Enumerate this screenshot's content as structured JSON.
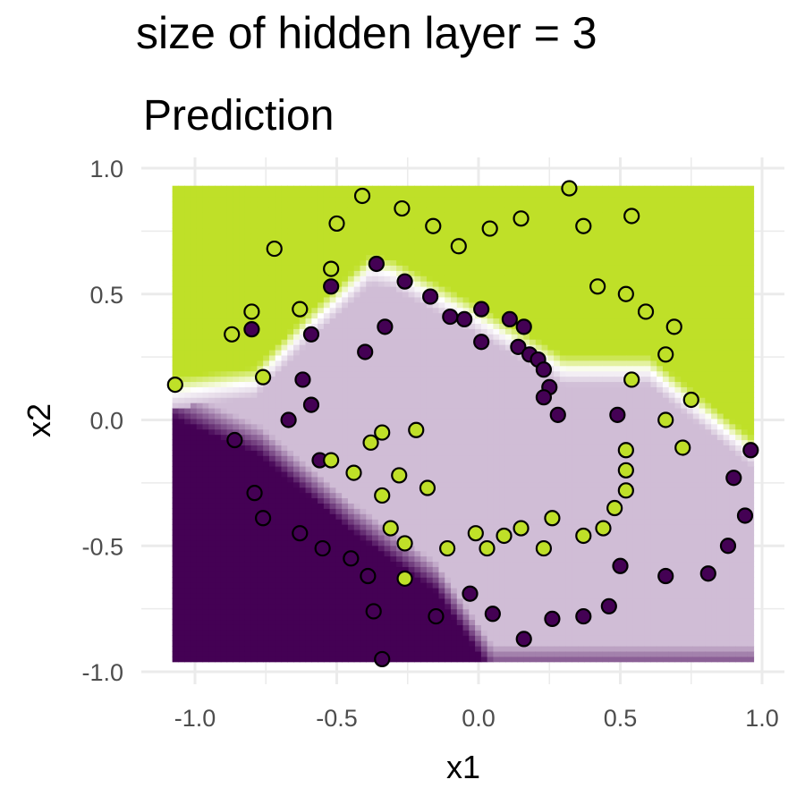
{
  "suptitle": "size of hidden layer = 3",
  "chart_data": {
    "type": "scatter",
    "title": "Prediction",
    "xlabel": "x1",
    "ylabel": "x2",
    "xlim": [
      -1.15,
      1.05
    ],
    "ylim": [
      -1.0,
      1.0
    ],
    "xticks": [
      -1.0,
      -0.5,
      0.0,
      0.5,
      1.0
    ],
    "yticks": [
      -1.0,
      -0.5,
      0.0,
      0.5,
      1.0
    ],
    "xtick_labels": [
      "-1.0",
      "-0.5",
      "0.0",
      "0.5",
      "1.0"
    ],
    "ytick_labels": [
      "-1.0",
      "-0.5",
      "0.0",
      "0.5",
      "1.0"
    ],
    "grid": true,
    "prediction_surface": {
      "x_range": [
        -1.08,
        0.97
      ],
      "y_range": [
        -0.96,
        0.93
      ],
      "colors": {
        "class_a": "#bfe028",
        "class_b_light": "#d0bdd6",
        "class_b_dark": "#440154"
      },
      "boundary_light_dark": {
        "description_free_points": [
          [
            -1.08,
            0.07
          ],
          [
            -0.77,
            -0.08
          ],
          [
            -0.45,
            -0.38
          ],
          [
            -0.15,
            -0.62
          ],
          [
            0.05,
            -0.95
          ]
        ]
      },
      "boundary_class_a": [
        [
          -1.08,
          0.11
        ],
        [
          -0.79,
          0.15
        ],
        [
          -0.6,
          0.37
        ],
        [
          -0.38,
          0.6
        ],
        [
          -0.3,
          0.58
        ],
        [
          -0.05,
          0.43
        ],
        [
          0.3,
          0.2
        ],
        [
          0.6,
          0.2
        ],
        [
          0.97,
          -0.13
        ]
      ]
    },
    "series": [
      {
        "color": "#440154",
        "points": [
          [
            -0.36,
            0.62
          ],
          [
            -0.52,
            0.53
          ],
          [
            -0.26,
            0.55
          ],
          [
            -0.17,
            0.49
          ],
          [
            -0.1,
            0.41
          ],
          [
            -0.05,
            0.4
          ],
          [
            0.01,
            0.44
          ],
          [
            0.11,
            0.4
          ],
          [
            0.16,
            0.37
          ],
          [
            -0.8,
            0.36
          ],
          [
            -0.59,
            0.34
          ],
          [
            -0.33,
            0.37
          ],
          [
            0.01,
            0.31
          ],
          [
            0.14,
            0.29
          ],
          [
            0.18,
            0.26
          ],
          [
            0.21,
            0.24
          ],
          [
            0.23,
            0.2
          ],
          [
            -0.4,
            0.27
          ],
          [
            -0.62,
            0.16
          ],
          [
            0.25,
            0.13
          ],
          [
            0.23,
            0.09
          ],
          [
            -0.59,
            0.06
          ],
          [
            0.28,
            0.02
          ],
          [
            -0.67,
            0.0
          ],
          [
            0.49,
            0.02
          ],
          [
            -0.86,
            -0.08
          ],
          [
            -0.56,
            -0.16
          ],
          [
            0.96,
            -0.12
          ],
          [
            0.9,
            -0.23
          ],
          [
            -0.79,
            -0.29
          ],
          [
            -0.76,
            -0.39
          ],
          [
            0.94,
            -0.38
          ],
          [
            -0.63,
            -0.45
          ],
          [
            -0.55,
            -0.51
          ],
          [
            0.88,
            -0.5
          ],
          [
            -0.45,
            -0.55
          ],
          [
            0.5,
            -0.58
          ],
          [
            -0.39,
            -0.62
          ],
          [
            0.66,
            -0.62
          ],
          [
            0.81,
            -0.61
          ],
          [
            -0.03,
            -0.69
          ],
          [
            0.46,
            -0.74
          ],
          [
            -0.37,
            -0.76
          ],
          [
            0.05,
            -0.77
          ],
          [
            -0.15,
            -0.78
          ],
          [
            0.26,
            -0.79
          ],
          [
            0.37,
            -0.78
          ],
          [
            0.16,
            -0.87
          ],
          [
            -0.34,
            -0.95
          ]
        ]
      },
      {
        "color": "#bfe028",
        "points": [
          [
            0.32,
            0.92
          ],
          [
            -0.41,
            0.89
          ],
          [
            -0.27,
            0.84
          ],
          [
            0.15,
            0.8
          ],
          [
            0.54,
            0.81
          ],
          [
            -0.5,
            0.78
          ],
          [
            -0.16,
            0.77
          ],
          [
            0.04,
            0.76
          ],
          [
            0.37,
            0.77
          ],
          [
            -0.07,
            0.69
          ],
          [
            -0.72,
            0.68
          ],
          [
            -0.52,
            0.6
          ],
          [
            0.42,
            0.53
          ],
          [
            0.52,
            0.5
          ],
          [
            -0.8,
            0.43
          ],
          [
            -0.63,
            0.44
          ],
          [
            0.59,
            0.43
          ],
          [
            -0.87,
            0.34
          ],
          [
            0.69,
            0.37
          ],
          [
            0.66,
            0.26
          ],
          [
            -1.07,
            0.14
          ],
          [
            -0.76,
            0.17
          ],
          [
            0.54,
            0.16
          ],
          [
            0.75,
            0.08
          ],
          [
            0.66,
            0.0
          ],
          [
            -0.34,
            -0.05
          ],
          [
            -0.22,
            -0.04
          ],
          [
            -0.38,
            -0.09
          ],
          [
            0.52,
            -0.12
          ],
          [
            0.72,
            -0.11
          ],
          [
            -0.52,
            -0.16
          ],
          [
            -0.44,
            -0.21
          ],
          [
            0.52,
            -0.2
          ],
          [
            -0.28,
            -0.22
          ],
          [
            -0.18,
            -0.27
          ],
          [
            0.52,
            -0.28
          ],
          [
            -0.34,
            -0.3
          ],
          [
            0.48,
            -0.35
          ],
          [
            0.26,
            -0.39
          ],
          [
            -0.31,
            -0.43
          ],
          [
            0.15,
            -0.43
          ],
          [
            0.44,
            -0.43
          ],
          [
            -0.01,
            -0.45
          ],
          [
            0.09,
            -0.46
          ],
          [
            0.37,
            -0.46
          ],
          [
            -0.26,
            -0.49
          ],
          [
            -0.11,
            -0.51
          ],
          [
            0.03,
            -0.51
          ],
          [
            0.23,
            -0.51
          ],
          [
            -0.26,
            -0.63
          ]
        ]
      }
    ]
  }
}
